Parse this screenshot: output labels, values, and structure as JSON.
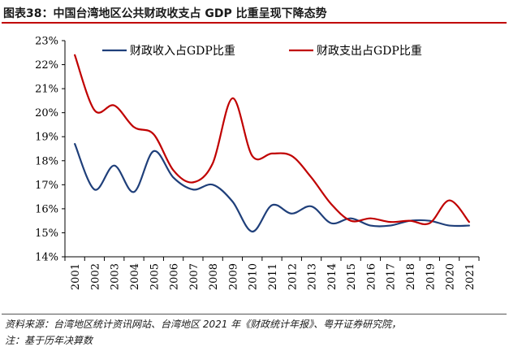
{
  "header": {
    "title": "图表38：中国台湾地区公共财政收支占 GDP 比重呈现下降态势"
  },
  "footer": {
    "source": "资料来源：台湾地区统计资讯网站、台湾地区 2021 年《财政统计年报》、粤开证券研究院，",
    "note": "注：基于历年决算数"
  },
  "chart_data": {
    "type": "line",
    "title": "",
    "xlabel": "",
    "ylabel": "",
    "categories": [
      "2001",
      "2002",
      "2003",
      "2004",
      "2005",
      "2006",
      "2007",
      "2008",
      "2009",
      "2010",
      "2011",
      "2012",
      "2013",
      "2014",
      "2015",
      "2016",
      "2017",
      "2018",
      "2019",
      "2020",
      "2021"
    ],
    "ylim": [
      14,
      23
    ],
    "yticks": [
      "14%",
      "15%",
      "16%",
      "17%",
      "18%",
      "19%",
      "20%",
      "21%",
      "22%",
      "23%"
    ],
    "legend_position": "top",
    "grid": false,
    "series": [
      {
        "name": "财政收入占GDP比重",
        "color": "#1f3f7a",
        "values": [
          18.7,
          16.8,
          17.8,
          16.7,
          18.4,
          17.3,
          16.8,
          17.0,
          16.3,
          15.05,
          16.15,
          15.8,
          16.1,
          15.4,
          15.6,
          15.3,
          15.3,
          15.5,
          15.5,
          15.3,
          15.3
        ]
      },
      {
        "name": "财政支出占GDP比重",
        "color": "#c00000",
        "values": [
          22.4,
          20.1,
          20.3,
          19.4,
          19.1,
          17.6,
          17.1,
          17.9,
          20.6,
          18.2,
          18.3,
          18.2,
          17.3,
          16.2,
          15.5,
          15.6,
          15.45,
          15.5,
          15.4,
          16.35,
          15.45
        ]
      }
    ]
  }
}
